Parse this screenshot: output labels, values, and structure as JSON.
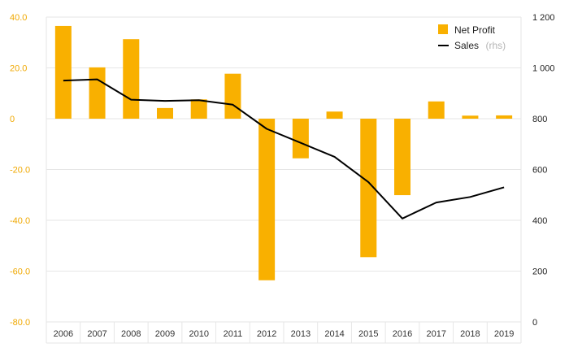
{
  "chart_data": {
    "type": "bar",
    "categories": [
      "2006",
      "2007",
      "2008",
      "2009",
      "2010",
      "2011",
      "2012",
      "2013",
      "2014",
      "2015",
      "2016",
      "2017",
      "2018",
      "2019"
    ],
    "series": [
      {
        "name": "Net Profit",
        "type": "bar",
        "axis": "left",
        "color": "#f9b000",
        "values": [
          36.5,
          20.2,
          31.3,
          4.2,
          7.6,
          17.7,
          -63.6,
          -15.6,
          2.8,
          -54.5,
          -30.1,
          6.8,
          1.2,
          1.3
        ]
      },
      {
        "name": "Sales",
        "name_suffix": "(rhs)",
        "type": "line",
        "axis": "right",
        "color": "#000000",
        "values": [
          950,
          955,
          875,
          870,
          873,
          855,
          760,
          705,
          650,
          550,
          407,
          470,
          492,
          530
        ]
      }
    ],
    "left_axis": {
      "ylim": [
        -80,
        40
      ],
      "ticks": [
        40,
        20,
        0,
        -20,
        -40,
        -60,
        -80
      ],
      "tick_labels": [
        "40.0",
        "20.0",
        "0",
        "-20.0",
        "-40.0",
        "-60.0",
        "-80.0"
      ],
      "color": "#f0a800"
    },
    "right_axis": {
      "ylim": [
        0,
        1200
      ],
      "ticks": [
        1200,
        1000,
        800,
        600,
        400,
        200,
        0
      ],
      "tick_labels": [
        "1 200",
        "1 000",
        "800",
        "600",
        "400",
        "200",
        "0"
      ],
      "color": "#222222"
    },
    "grid": true,
    "legend_position": "top-right",
    "title": "",
    "xlabel": "",
    "ylabel": ""
  }
}
